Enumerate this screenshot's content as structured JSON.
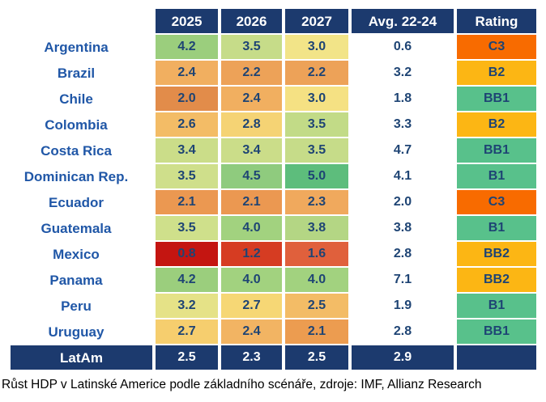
{
  "table": {
    "columns": [
      "2025",
      "2026",
      "2027",
      "Avg. 22-24",
      "Rating"
    ],
    "rows": [
      {
        "country": "Argentina",
        "cells": [
          {
            "v": "4.2",
            "bg": "#9BCE7D"
          },
          {
            "v": "3.5",
            "bg": "#C6DC89"
          },
          {
            "v": "3.0",
            "bg": "#F2E488"
          }
        ],
        "avg": "0.6",
        "rating": {
          "v": "C3",
          "bg": "#F86B00"
        }
      },
      {
        "country": "Brazil",
        "cells": [
          {
            "v": "2.4",
            "bg": "#F1AF60"
          },
          {
            "v": "2.2",
            "bg": "#EDA258"
          },
          {
            "v": "2.2",
            "bg": "#EDA258"
          }
        ],
        "avg": "3.2",
        "rating": {
          "v": "B2",
          "bg": "#FCB614"
        }
      },
      {
        "country": "Chile",
        "cells": [
          {
            "v": "2.0",
            "bg": "#E28C4A"
          },
          {
            "v": "2.4",
            "bg": "#F1AF60"
          },
          {
            "v": "3.0",
            "bg": "#F5E183"
          }
        ],
        "avg": "1.8",
        "rating": {
          "v": "BB1",
          "bg": "#58C18B"
        }
      },
      {
        "country": "Colombia",
        "cells": [
          {
            "v": "2.6",
            "bg": "#F3BC66"
          },
          {
            "v": "2.8",
            "bg": "#F5D374"
          },
          {
            "v": "3.5",
            "bg": "#C2DB87"
          }
        ],
        "avg": "3.3",
        "rating": {
          "v": "B2",
          "bg": "#FCB614"
        }
      },
      {
        "country": "Costa Rica",
        "cells": [
          {
            "v": "3.4",
            "bg": "#CBDD89"
          },
          {
            "v": "3.4",
            "bg": "#CBDD89"
          },
          {
            "v": "3.5",
            "bg": "#C6DC89"
          }
        ],
        "avg": "4.7",
        "rating": {
          "v": "BB1",
          "bg": "#58C18B"
        }
      },
      {
        "country": "Dominican Rep.",
        "cells": [
          {
            "v": "3.5",
            "bg": "#CFDF8B"
          },
          {
            "v": "4.5",
            "bg": "#8FCB7E"
          },
          {
            "v": "5.0",
            "bg": "#5DBD7C"
          }
        ],
        "avg": "4.1",
        "rating": {
          "v": "B1",
          "bg": "#58C18B"
        }
      },
      {
        "country": "Ecuador",
        "cells": [
          {
            "v": "2.1",
            "bg": "#EB9851"
          },
          {
            "v": "2.1",
            "bg": "#EB9851"
          },
          {
            "v": "2.3",
            "bg": "#F0A95D"
          }
        ],
        "avg": "2.0",
        "rating": {
          "v": "C3",
          "bg": "#F86B00"
        }
      },
      {
        "country": "Guatemala",
        "cells": [
          {
            "v": "3.5",
            "bg": "#CFE08B"
          },
          {
            "v": "4.0",
            "bg": "#A2D27F"
          },
          {
            "v": "3.8",
            "bg": "#B4D684"
          }
        ],
        "avg": "3.8",
        "rating": {
          "v": "B1",
          "bg": "#58C18B"
        }
      },
      {
        "country": "Mexico",
        "cells": [
          {
            "v": "0.8",
            "bg": "#C41511"
          },
          {
            "v": "1.2",
            "bg": "#D63C22"
          },
          {
            "v": "1.6",
            "bg": "#E0603C"
          }
        ],
        "avg": "2.8",
        "rating": {
          "v": "BB2",
          "bg": "#FCB614"
        }
      },
      {
        "country": "Panama",
        "cells": [
          {
            "v": "4.2",
            "bg": "#9BCE7D"
          },
          {
            "v": "4.0",
            "bg": "#A2D27F"
          },
          {
            "v": "4.0",
            "bg": "#A2D27F"
          }
        ],
        "avg": "7.1",
        "rating": {
          "v": "BB2",
          "bg": "#FCB614"
        }
      },
      {
        "country": "Peru",
        "cells": [
          {
            "v": "3.2",
            "bg": "#E5E287"
          },
          {
            "v": "2.7",
            "bg": "#F6D775"
          },
          {
            "v": "2.5",
            "bg": "#F3BC66"
          }
        ],
        "avg": "1.9",
        "rating": {
          "v": "B1",
          "bg": "#58C18B"
        }
      },
      {
        "country": "Uruguay",
        "cells": [
          {
            "v": "2.7",
            "bg": "#F6CE6E"
          },
          {
            "v": "2.4",
            "bg": "#F2B463"
          },
          {
            "v": "2.1",
            "bg": "#EC9C50"
          }
        ],
        "avg": "2.8",
        "rating": {
          "v": "BB1",
          "bg": "#58C18B"
        }
      }
    ],
    "footer": {
      "label": "LatAm",
      "values": [
        "2.5",
        "2.3",
        "2.5"
      ],
      "avg": "2.9",
      "rating": ""
    }
  },
  "caption": "Růst HDP v Latinské Americe podle základního scénáře, zdroje: IMF, Allianz Research",
  "colors": {
    "header_navy": "#1C3A6E",
    "header_text": "#FFFFFF",
    "country_label_blue": "#2057A7",
    "cell_number_navy": "#1E4474",
    "rating_orange": "#F86B00",
    "rating_amber": "#FCB614",
    "rating_green": "#58C18B",
    "mexico_dark_red": "#C41511",
    "best_green": "#5DBD7C"
  },
  "chart_data": {
    "type": "heatmap",
    "title": "",
    "caption": "Růst HDP v Latinské Americe podle základního scénáře, zdroje: IMF, Allianz Research",
    "columns": [
      "2025",
      "2026",
      "2027",
      "Avg. 22-24",
      "Rating"
    ],
    "categories": [
      "Argentina",
      "Brazil",
      "Chile",
      "Colombia",
      "Costa Rica",
      "Dominican Rep.",
      "Ecuador",
      "Guatemala",
      "Mexico",
      "Panama",
      "Peru",
      "Uruguay",
      "LatAm"
    ],
    "series": [
      {
        "name": "2025",
        "values": [
          4.2,
          2.4,
          2.0,
          2.6,
          3.4,
          3.5,
          2.1,
          3.5,
          0.8,
          4.2,
          3.2,
          2.7,
          2.5
        ]
      },
      {
        "name": "2026",
        "values": [
          3.5,
          2.2,
          2.4,
          2.8,
          3.4,
          4.5,
          2.1,
          4.0,
          1.2,
          4.0,
          2.7,
          2.4,
          2.3
        ]
      },
      {
        "name": "2027",
        "values": [
          3.0,
          2.2,
          3.0,
          3.5,
          3.5,
          5.0,
          2.3,
          3.8,
          1.6,
          4.0,
          2.5,
          2.1,
          2.5
        ]
      },
      {
        "name": "Avg. 22-24",
        "values": [
          0.6,
          3.2,
          1.8,
          3.3,
          4.7,
          4.1,
          2.0,
          3.8,
          2.8,
          7.1,
          1.9,
          2.8,
          2.9
        ]
      }
    ],
    "ratings": {
      "Argentina": "C3",
      "Brazil": "B2",
      "Chile": "BB1",
      "Colombia": "B2",
      "Costa Rica": "BB1",
      "Dominican Rep.": "B1",
      "Ecuador": "C3",
      "Guatemala": "B1",
      "Mexico": "BB2",
      "Panama": "BB2",
      "Peru": "B1",
      "Uruguay": "BB1",
      "LatAm": ""
    },
    "color_scale": "red = low growth, yellow = mid, green = high growth; heatmap applies to 2025-2027 forecast columns only",
    "legend_position": "none",
    "grid": false
  }
}
